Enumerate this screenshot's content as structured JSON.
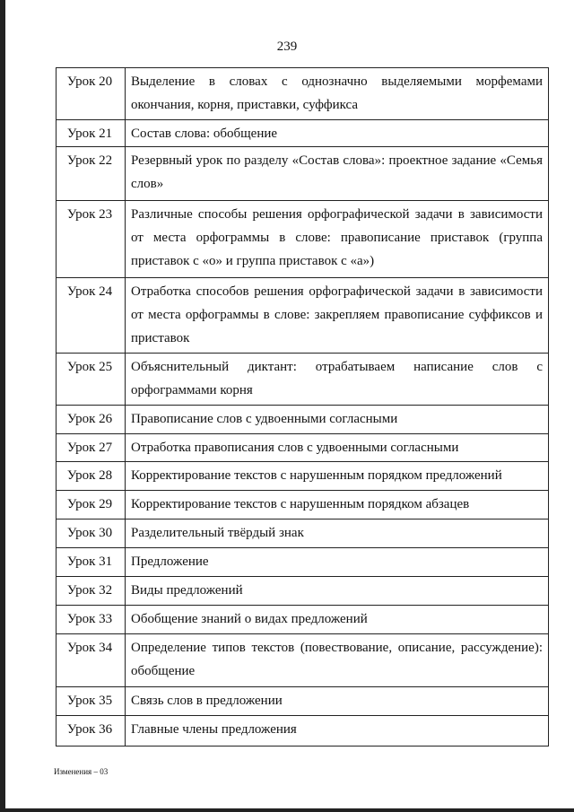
{
  "page_number": "239",
  "lessons": [
    {
      "num": "Урок 20",
      "topic": "Выделение в словах с однозначно выделяемыми морфемами окончания, корня, приставки, суффикса"
    },
    {
      "num": "Урок 21",
      "topic": "Состав слова: обобщение"
    },
    {
      "num": "Урок 22",
      "topic": "Резервный урок по разделу «Состав слова»: проектное задание «Семья слов»"
    },
    {
      "num": "Урок 23",
      "topic": "Различные способы решения орфографической задачи в зависимости от места орфограммы в слове: правописание приставок (группа приставок с «о» и группа приставок с «а»)"
    },
    {
      "num": "Урок 24",
      "topic": "Отработка способов решения орфографической задачи в зависимости от места орфограммы в слове: закрепляем правописание суффиксов и приставок"
    },
    {
      "num": "Урок 25",
      "topic": "Объяснительный диктант: отрабатываем написание слов с орфограммами корня"
    },
    {
      "num": "Урок 26",
      "topic": "Правописание слов с удвоенными согласными"
    },
    {
      "num": "Урок 27",
      "topic": "Отработка правописания слов с удвоенными согласными"
    },
    {
      "num": "Урок 28",
      "topic": "Корректирование текстов с нарушенным порядком предложений"
    },
    {
      "num": "Урок 29",
      "topic": "Корректирование текстов с нарушенным порядком абзацев"
    },
    {
      "num": "Урок 30",
      "topic": "Разделительный твёрдый знак"
    },
    {
      "num": "Урок 31",
      "topic": "Предложение"
    },
    {
      "num": "Урок 32",
      "topic": "Виды предложений"
    },
    {
      "num": "Урок 33",
      "topic": "Обобщение знаний о видах предложений"
    },
    {
      "num": "Урок 34",
      "topic": "Определение типов текстов (повествование, описание, рассуждение): обобщение"
    },
    {
      "num": "Урок 35",
      "topic": "Связь слов в предложении"
    },
    {
      "num": "Урок 36",
      "topic": "Главные члены предложения"
    }
  ],
  "footer": "Изменения – 03"
}
